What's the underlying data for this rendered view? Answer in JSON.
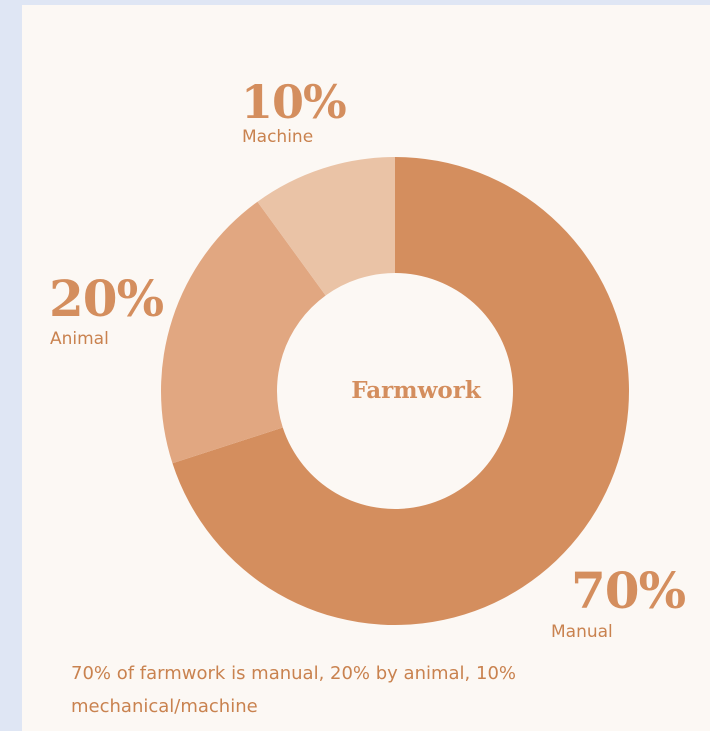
{
  "chart_data": {
    "type": "pie",
    "title": "Farmwork",
    "categories": [
      "Manual",
      "Animal",
      "Machine"
    ],
    "values": [
      70,
      20,
      10
    ],
    "value_labels": [
      "70%",
      "20%",
      "10%"
    ],
    "colors": [
      "#d48e5e",
      "#e1a781",
      "#eac3a6"
    ],
    "donut": true,
    "caption": "70% of farmwork is manual, 20% by animal, 10% mechanical/machine"
  },
  "colors": {
    "background": "#dfe6f4",
    "card": "#fcf8f4",
    "accent": "#d48e5e"
  }
}
